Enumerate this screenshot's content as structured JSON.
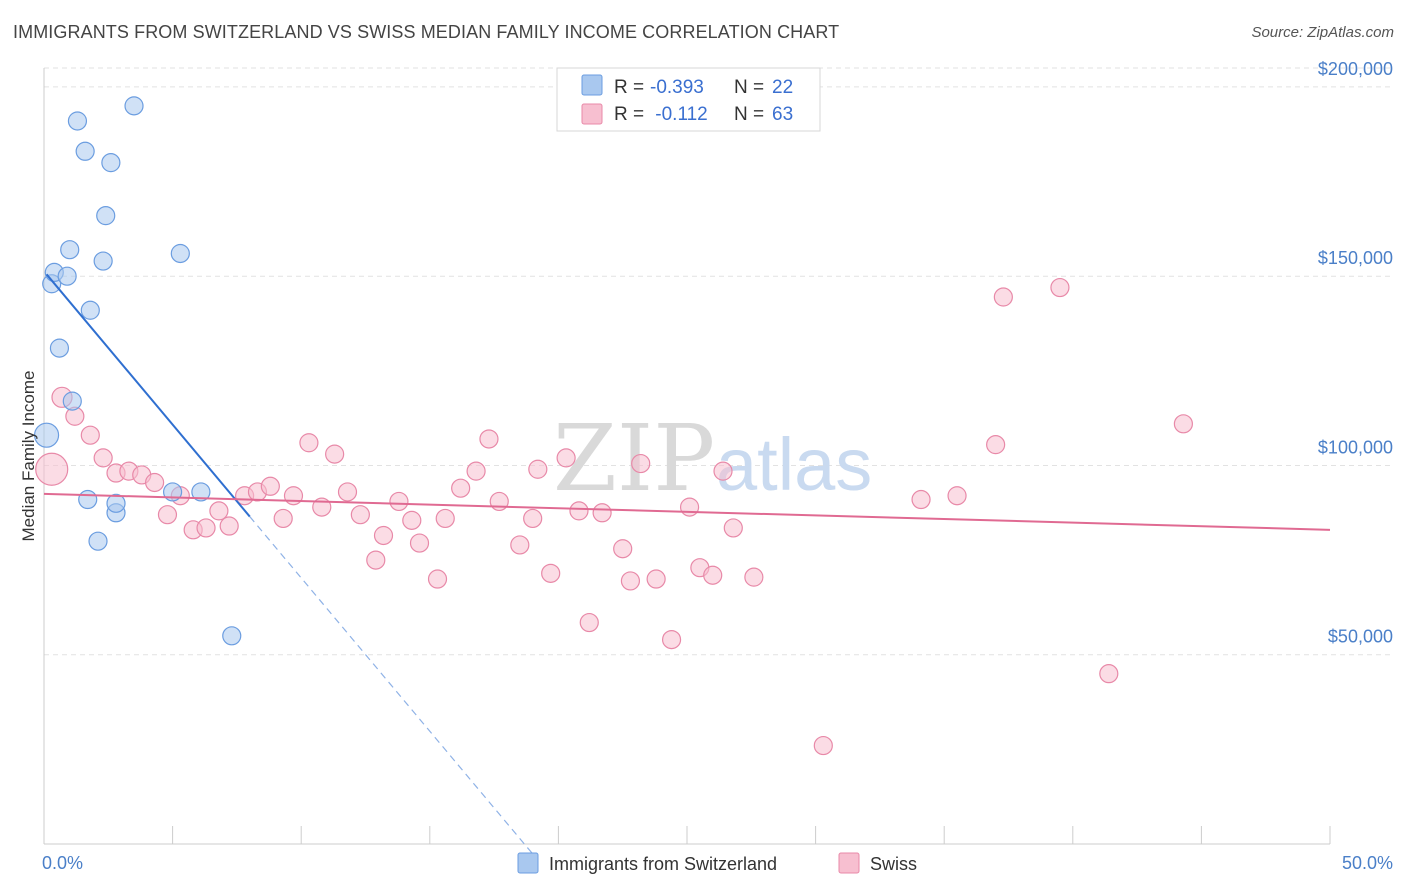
{
  "title": "IMMIGRANTS FROM SWITZERLAND VS SWISS MEDIAN FAMILY INCOME CORRELATION CHART",
  "source": "Source: ZipAtlas.com",
  "watermark": {
    "zip": "ZIP",
    "atlas": "atlas"
  },
  "chart_data": {
    "type": "scatter",
    "title": "IMMIGRANTS FROM SWITZERLAND VS SWISS MEDIAN FAMILY INCOME CORRELATION CHART",
    "xlabel": "",
    "ylabel": "Median Family Income",
    "xlim": [
      0,
      50
    ],
    "ylim": [
      0,
      205000
    ],
    "x_tick_labels": [
      "0.0%",
      "50.0%"
    ],
    "y_ticks": [
      {
        "value": 50000,
        "label": "$50,000"
      },
      {
        "value": 100000,
        "label": "$100,000"
      },
      {
        "value": 150000,
        "label": "$150,000"
      },
      {
        "value": 200000,
        "label": "$200,000"
      }
    ],
    "grid": true,
    "legend": [
      {
        "name": "Immigrants from Switzerland",
        "r_label": "R =",
        "r_value": "-0.393",
        "n_label": "N =",
        "n_value": "22",
        "color": "#a9c8ef",
        "stroke": "#6b9de0"
      },
      {
        "name": "Swiss",
        "r_label": "R =",
        "r_value": " -0.112",
        "n_label": "N =",
        "n_value": "63",
        "color": "#f7bfd0",
        "stroke": "#e889a8"
      }
    ],
    "series": [
      {
        "name": "Immigrants from Switzerland",
        "color": "#a9c8ef",
        "stroke": "#6b9de0",
        "trend": {
          "x0": 0.1,
          "y0": 150500,
          "x1": 8.0,
          "y1": 86500,
          "dash_to_x": 19.0,
          "line_color": "#2f6fd0"
        },
        "points": [
          [
            0.1,
            108000,
            12
          ],
          [
            0.3,
            148000,
            9
          ],
          [
            0.4,
            151000,
            9
          ],
          [
            0.6,
            131000,
            9
          ],
          [
            0.9,
            150000,
            9
          ],
          [
            1.0,
            157000,
            9
          ],
          [
            1.1,
            117000,
            9
          ],
          [
            1.3,
            191000,
            9
          ],
          [
            1.6,
            183000,
            9
          ],
          [
            1.8,
            141000,
            9
          ],
          [
            1.7,
            91000,
            9
          ],
          [
            2.1,
            80000,
            9
          ],
          [
            2.3,
            154000,
            9
          ],
          [
            2.4,
            166000,
            9
          ],
          [
            2.6,
            180000,
            9
          ],
          [
            2.8,
            87500,
            9
          ],
          [
            2.8,
            90000,
            9
          ],
          [
            3.5,
            195000,
            9
          ],
          [
            5.0,
            93000,
            9
          ],
          [
            5.3,
            156000,
            9
          ],
          [
            6.1,
            93000,
            9
          ],
          [
            7.3,
            55000,
            9
          ]
        ]
      },
      {
        "name": "Swiss",
        "color": "#f7bfd0",
        "stroke": "#e889a8",
        "trend": {
          "x0": 0.0,
          "y0": 92500,
          "x1": 50.0,
          "y1": 83000,
          "line_color": "#e06a92"
        },
        "points": [
          [
            0.3,
            99000,
            16
          ],
          [
            0.7,
            118000,
            10
          ],
          [
            1.2,
            113000,
            9
          ],
          [
            1.8,
            108000,
            9
          ],
          [
            2.3,
            102000,
            9
          ],
          [
            2.8,
            98000,
            9
          ],
          [
            3.3,
            98500,
            9
          ],
          [
            3.8,
            97500,
            9
          ],
          [
            4.3,
            95500,
            9
          ],
          [
            4.8,
            87000,
            9
          ],
          [
            5.3,
            92000,
            9
          ],
          [
            5.8,
            83000,
            9
          ],
          [
            6.3,
            83500,
            9
          ],
          [
            6.8,
            88000,
            9
          ],
          [
            7.2,
            84000,
            9
          ],
          [
            7.8,
            92000,
            9
          ],
          [
            8.3,
            93000,
            9
          ],
          [
            8.8,
            94500,
            9
          ],
          [
            9.3,
            86000,
            9
          ],
          [
            9.7,
            92000,
            9
          ],
          [
            10.3,
            106000,
            9
          ],
          [
            10.8,
            89000,
            9
          ],
          [
            11.3,
            103000,
            9
          ],
          [
            11.8,
            93000,
            9
          ],
          [
            12.3,
            87000,
            9
          ],
          [
            12.9,
            75000,
            9
          ],
          [
            13.2,
            81500,
            9
          ],
          [
            13.8,
            90500,
            9
          ],
          [
            14.3,
            85500,
            9
          ],
          [
            14.6,
            79500,
            9
          ],
          [
            15.3,
            70000,
            9
          ],
          [
            15.6,
            86000,
            9
          ],
          [
            16.2,
            94000,
            9
          ],
          [
            16.8,
            98500,
            9
          ],
          [
            17.3,
            107000,
            9
          ],
          [
            17.7,
            90500,
            9
          ],
          [
            18.5,
            79000,
            9
          ],
          [
            19.0,
            86000,
            9
          ],
          [
            19.2,
            99000,
            9
          ],
          [
            19.7,
            71500,
            9
          ],
          [
            20.3,
            102000,
            9
          ],
          [
            20.8,
            88000,
            9
          ],
          [
            21.2,
            58500,
            9
          ],
          [
            21.7,
            87500,
            9
          ],
          [
            22.5,
            78000,
            9
          ],
          [
            22.8,
            69500,
            9
          ],
          [
            23.2,
            100500,
            9
          ],
          [
            23.8,
            70000,
            9
          ],
          [
            24.4,
            54000,
            9
          ],
          [
            25.1,
            89000,
            9
          ],
          [
            25.5,
            73000,
            9
          ],
          [
            26.0,
            71000,
            9
          ],
          [
            26.4,
            98500,
            9
          ],
          [
            26.8,
            83500,
            9
          ],
          [
            27.6,
            70500,
            9
          ],
          [
            30.3,
            26000,
            9
          ],
          [
            34.1,
            91000,
            9
          ],
          [
            35.5,
            92000,
            9
          ],
          [
            37.0,
            105500,
            9
          ],
          [
            37.3,
            144500,
            9
          ],
          [
            39.5,
            147000,
            9
          ],
          [
            41.4,
            45000,
            9
          ],
          [
            44.3,
            111000,
            9
          ]
        ]
      }
    ]
  }
}
